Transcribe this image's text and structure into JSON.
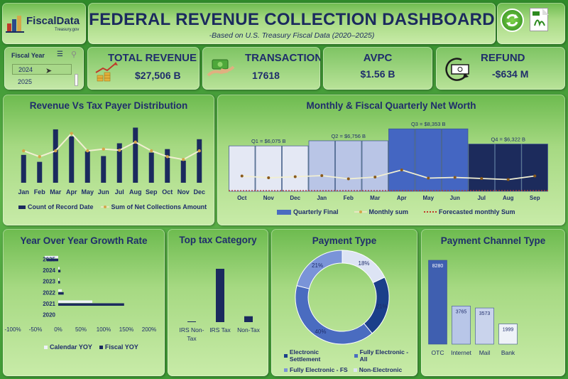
{
  "header": {
    "logo_name": "FiscalData",
    "logo_sub": "Treasury.gov",
    "title": "FEDERAL REVENUE COLLECTION DASHBOARD",
    "subtitle": "-Based on U.S. Treasury Fiscal Data (2020–2025)",
    "refresh_icon": "refresh-icon",
    "pdf_icon": "pdf-icon"
  },
  "filter": {
    "title": "Fiscal Year",
    "options": [
      "2024",
      "2025"
    ],
    "selected": "2024"
  },
  "kpis": {
    "total_revenue": {
      "label": "TOTAL REVENUE",
      "value": "$27,506 B"
    },
    "transactions": {
      "label": "TRANSACTIONS",
      "value": "17618"
    },
    "avpc": {
      "label": "AVPC",
      "value": "$1.56 B"
    },
    "refund": {
      "label": "REFUND",
      "value": "-$634 M"
    }
  },
  "colors": {
    "navy": "#1b2a5e",
    "mid_blue": "#4a6cc0",
    "light_blue": "#b8c6e8",
    "pale_blue": "#dde4f4",
    "gold": "#d4a64a",
    "white": "#ffffff"
  },
  "chart_data": [
    {
      "id": "revenue_vs_taxpayer",
      "type": "bar",
      "title": "Revenue Vs Tax Payer Distribution",
      "categories": [
        "Jan",
        "Feb",
        "Mar",
        "Apr",
        "May",
        "Jun",
        "Jul",
        "Aug",
        "Sep",
        "Oct",
        "Nov",
        "Dec"
      ],
      "series": [
        {
          "name": "Count of Record Date",
          "type": "bar",
          "values": [
            48,
            36,
            92,
            80,
            54,
            46,
            68,
            95,
            52,
            58,
            38,
            75
          ]
        },
        {
          "name": "Sum of Net Collections Amount",
          "type": "line",
          "values": [
            55,
            45,
            55,
            85,
            55,
            58,
            56,
            70,
            55,
            45,
            40,
            55
          ]
        }
      ]
    },
    {
      "id": "quarterly_net_worth",
      "type": "bar",
      "title": "Monthly & Fiscal Quarterly Net Worth",
      "categories": [
        "Oct",
        "Nov",
        "Dec",
        "Jan",
        "Feb",
        "Mar",
        "Apr",
        "May",
        "Jun",
        "Jul",
        "Aug",
        "Sep"
      ],
      "quarters": [
        {
          "label": "Q1 = $6,075 B",
          "value": 6075
        },
        {
          "label": "Q2 = $6,756 B",
          "value": 6756
        },
        {
          "label": "Q3 = $8,353 B",
          "value": 8353
        },
        {
          "label": "Q4 = $6,322 B",
          "value": 6322
        }
      ],
      "series": [
        {
          "name": "Quarterly Final",
          "type": "bar"
        },
        {
          "name": "Monthly sum",
          "type": "line",
          "values": [
            2150,
            1900,
            2050,
            2200,
            1750,
            2000,
            3000,
            1850,
            1950,
            1800,
            1650,
            2150
          ]
        },
        {
          "name": "Forecasted monthly Sum",
          "type": "line",
          "values": [
            0,
            0,
            0,
            0,
            0,
            0,
            0,
            0,
            0,
            0,
            0,
            0
          ]
        }
      ]
    },
    {
      "id": "yoy_growth",
      "type": "bar",
      "title": "Year Over Year Growth Rate",
      "orientation": "horizontal",
      "categories": [
        "2025",
        "2024",
        "2023",
        "2022",
        "2021",
        "2020"
      ],
      "xlim": [
        -100,
        200
      ],
      "x_ticks": [
        "-100%",
        "-50%",
        "0%",
        "50%",
        "100%",
        "150%",
        "200%"
      ],
      "series": [
        {
          "name": "Calendar YOY",
          "values": [
            -30,
            3,
            2,
            8,
            75,
            0
          ]
        },
        {
          "name": "Fiscal YOY",
          "values": [
            -25,
            5,
            4,
            12,
            145,
            0
          ]
        }
      ]
    },
    {
      "id": "top_tax_category",
      "type": "bar",
      "title": "Top tax Category",
      "categories": [
        "IRS Non-Tax",
        "IRS Tax",
        "Non-Tax"
      ],
      "values": [
        1,
        100,
        11
      ]
    },
    {
      "id": "payment_type",
      "type": "pie",
      "title": "Payment Type",
      "labels": [
        "Electronic Settlement",
        "Fully Electronic - All",
        "Fully Electronic - FS",
        "Non-Electronic"
      ],
      "values": [
        21,
        40,
        21,
        18
      ],
      "value_labels": [
        "21%",
        "40%",
        "21%",
        "18%"
      ]
    },
    {
      "id": "payment_channel",
      "type": "bar",
      "title": "Payment Channel Type",
      "categories": [
        "OTC",
        "Internet",
        "Mail",
        "Bank"
      ],
      "values": [
        8280,
        3765,
        3573,
        1999
      ]
    }
  ]
}
